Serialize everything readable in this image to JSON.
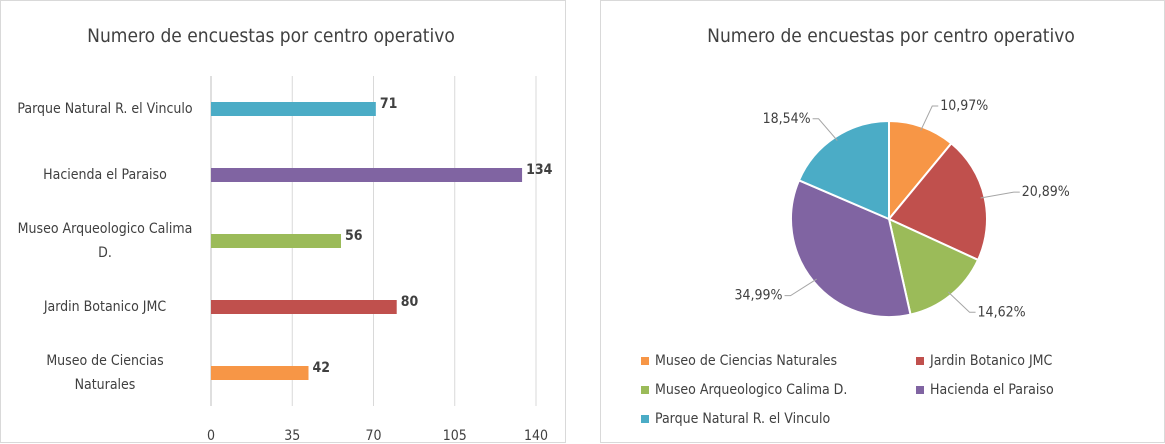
{
  "chart_data": [
    {
      "type": "bar",
      "orientation": "horizontal",
      "title": "Numero de encuestas por centro operativo",
      "categories": [
        "Museo  de Ciencias Naturales",
        "Jardin Botanico JMC",
        "Museo Arqueologico Calima D.",
        "Hacienda el Paraiso",
        "Parque Natural R. el Vinculo"
      ],
      "values": [
        42,
        80,
        56,
        134,
        71
      ],
      "colors": [
        "#f79646",
        "#c0504d",
        "#9bbb59",
        "#8064a2",
        "#4bacc6"
      ],
      "xlim": [
        0,
        140
      ],
      "xticks": [
        0,
        35,
        70,
        105,
        140
      ],
      "grid": true
    },
    {
      "type": "pie",
      "title": "Numero de encuestas por centro operativo",
      "categories": [
        "Museo  de Ciencias Naturales",
        "Jardin Botanico JMC",
        "Museo Arqueologico Calima D.",
        "Hacienda el Paraiso",
        "Parque Natural R. el Vinculo"
      ],
      "values": [
        10.97,
        20.89,
        14.62,
        34.99,
        18.54
      ],
      "value_labels": [
        "10,97%",
        "20,89%",
        "14,62%",
        "34,99%",
        "18,54%"
      ],
      "colors": [
        "#f79646",
        "#c0504d",
        "#9bbb59",
        "#8064a2",
        "#4bacc6"
      ],
      "legend": "bottom"
    }
  ]
}
